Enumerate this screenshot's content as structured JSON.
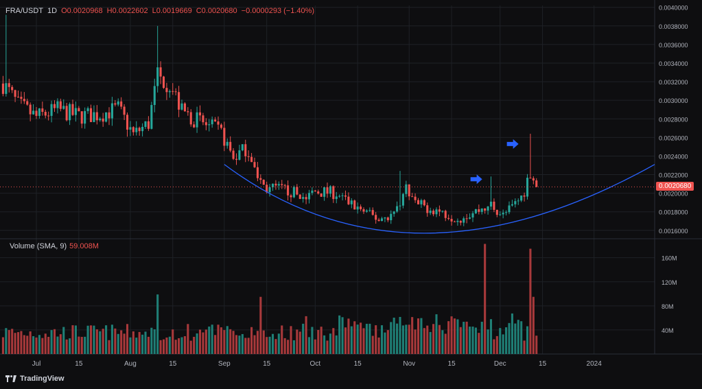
{
  "header": {
    "symbol": "FRA/USDT",
    "interval": "1D",
    "open": "O0.0020968",
    "high": "H0.0022602",
    "low": "L0.0019669",
    "close": "C0.0020680",
    "change": "−0.0000293 (−1.40%)"
  },
  "volume_legend": {
    "label": "Volume (SMA, 9)",
    "value": "59.008M"
  },
  "last_price_tag": "0.0020680",
  "branding": "TradingView",
  "colors": {
    "up": "#26a69a",
    "down": "#ef5350",
    "up_vol": "#1f7f76",
    "down_vol": "#a8393b",
    "curve": "#2962ff",
    "arrow": "#2962ff",
    "bg": "#0e0e10",
    "grid": "#1e2126",
    "text": "#b2b5be"
  },
  "chart_data": [
    {
      "type": "candlestick",
      "title": "FRA/USDT, 1D",
      "y_ticks": [
        "0.0016000",
        "0.0018000",
        "0.0020000",
        "0.0022000",
        "0.0024000",
        "0.0026000",
        "0.0028000",
        "0.0030000",
        "0.0032000",
        "0.0034000",
        "0.0036000",
        "0.0038000",
        "0.0040000"
      ],
      "ylim": [
        0.00151,
        0.00402
      ],
      "x_ticks": [
        "Jul",
        "15",
        "Aug",
        "15",
        "Sep",
        "15",
        "Oct",
        "15",
        "Nov",
        "15",
        "Dec",
        "15",
        "2024"
      ],
      "x_tick_dates": [
        "2023-07-01",
        "2023-07-15",
        "2023-08-01",
        "2023-08-15",
        "2023-09-01",
        "2023-09-15",
        "2023-10-01",
        "2023-10-15",
        "2023-11-01",
        "2023-11-15",
        "2023-12-01",
        "2023-12-15",
        "2024-01-01"
      ],
      "xlim": [
        "2023-06-19",
        "2024-01-21"
      ],
      "last_price": 0.002068,
      "close_anchors": [
        [
          "2023-06-20",
          0.00318
        ],
        [
          "2023-06-25",
          0.00295
        ],
        [
          "2023-07-01",
          0.00282
        ],
        [
          "2023-07-08",
          0.0029
        ],
        [
          "2023-07-15",
          0.00283
        ],
        [
          "2023-07-22",
          0.00285
        ],
        [
          "2023-07-28",
          0.00291
        ],
        [
          "2023-08-02",
          0.00263
        ],
        [
          "2023-08-07",
          0.00275
        ],
        [
          "2023-08-10",
          0.00325
        ],
        [
          "2023-08-14",
          0.00318
        ],
        [
          "2023-08-18",
          0.00288
        ],
        [
          "2023-08-25",
          0.00275
        ],
        [
          "2023-08-31",
          0.00265
        ],
        [
          "2023-09-04",
          0.00238
        ],
        [
          "2023-09-08",
          0.00248
        ],
        [
          "2023-09-10",
          0.0024
        ],
        [
          "2023-09-12",
          0.00213
        ],
        [
          "2023-09-15",
          0.00205
        ],
        [
          "2023-09-22",
          0.00203
        ],
        [
          "2023-09-28",
          0.00195
        ],
        [
          "2023-10-01",
          0.00202
        ],
        [
          "2023-10-08",
          0.002
        ],
        [
          "2023-10-13",
          0.00188
        ],
        [
          "2023-10-18",
          0.00178
        ],
        [
          "2023-10-22",
          0.00172
        ],
        [
          "2023-10-27",
          0.00178
        ],
        [
          "2023-10-29",
          0.00192
        ],
        [
          "2023-10-31",
          0.00205
        ],
        [
          "2023-11-03",
          0.00188
        ],
        [
          "2023-11-10",
          0.00182
        ],
        [
          "2023-11-17",
          0.00173
        ],
        [
          "2023-11-24",
          0.00182
        ],
        [
          "2023-11-28",
          0.00188
        ],
        [
          "2023-12-02",
          0.00176
        ],
        [
          "2023-12-05",
          0.00185
        ],
        [
          "2023-12-08",
          0.00196
        ],
        [
          "2023-12-10",
          0.0021
        ],
        [
          "2023-12-12",
          0.0021
        ],
        [
          "2023-12-13",
          0.002068
        ]
      ],
      "curve_points": [
        [
          "2023-09-01",
          0.00231
        ],
        [
          "2023-11-01",
          0.00157
        ],
        [
          "2024-01-21",
          0.00231
        ]
      ],
      "arrows": [
        {
          "date": "2023-11-26",
          "price": 0.00215
        },
        {
          "date": "2023-12-08",
          "price": 0.00253
        }
      ],
      "spikes": [
        {
          "date": "2023-06-21",
          "high": 0.00392
        },
        {
          "date": "2023-08-10",
          "high": 0.0038
        },
        {
          "date": "2023-10-29",
          "high": 0.00224
        },
        {
          "date": "2023-11-28",
          "high": 0.00218
        },
        {
          "date": "2023-12-11",
          "high": 0.00264
        }
      ]
    },
    {
      "type": "bar",
      "title": "Volume (SMA, 9)",
      "y_ticks": [
        "40M",
        "80M",
        "120M",
        "160M"
      ],
      "ylim": [
        0,
        187000000
      ],
      "spikes": [
        {
          "date": "2023-08-10",
          "value": 99000000
        },
        {
          "date": "2023-09-13",
          "value": 95000000
        },
        {
          "date": "2023-11-26",
          "value": 183000000
        },
        {
          "date": "2023-12-11",
          "value": 175000000
        },
        {
          "date": "2023-12-12",
          "value": 95000000
        }
      ]
    }
  ]
}
